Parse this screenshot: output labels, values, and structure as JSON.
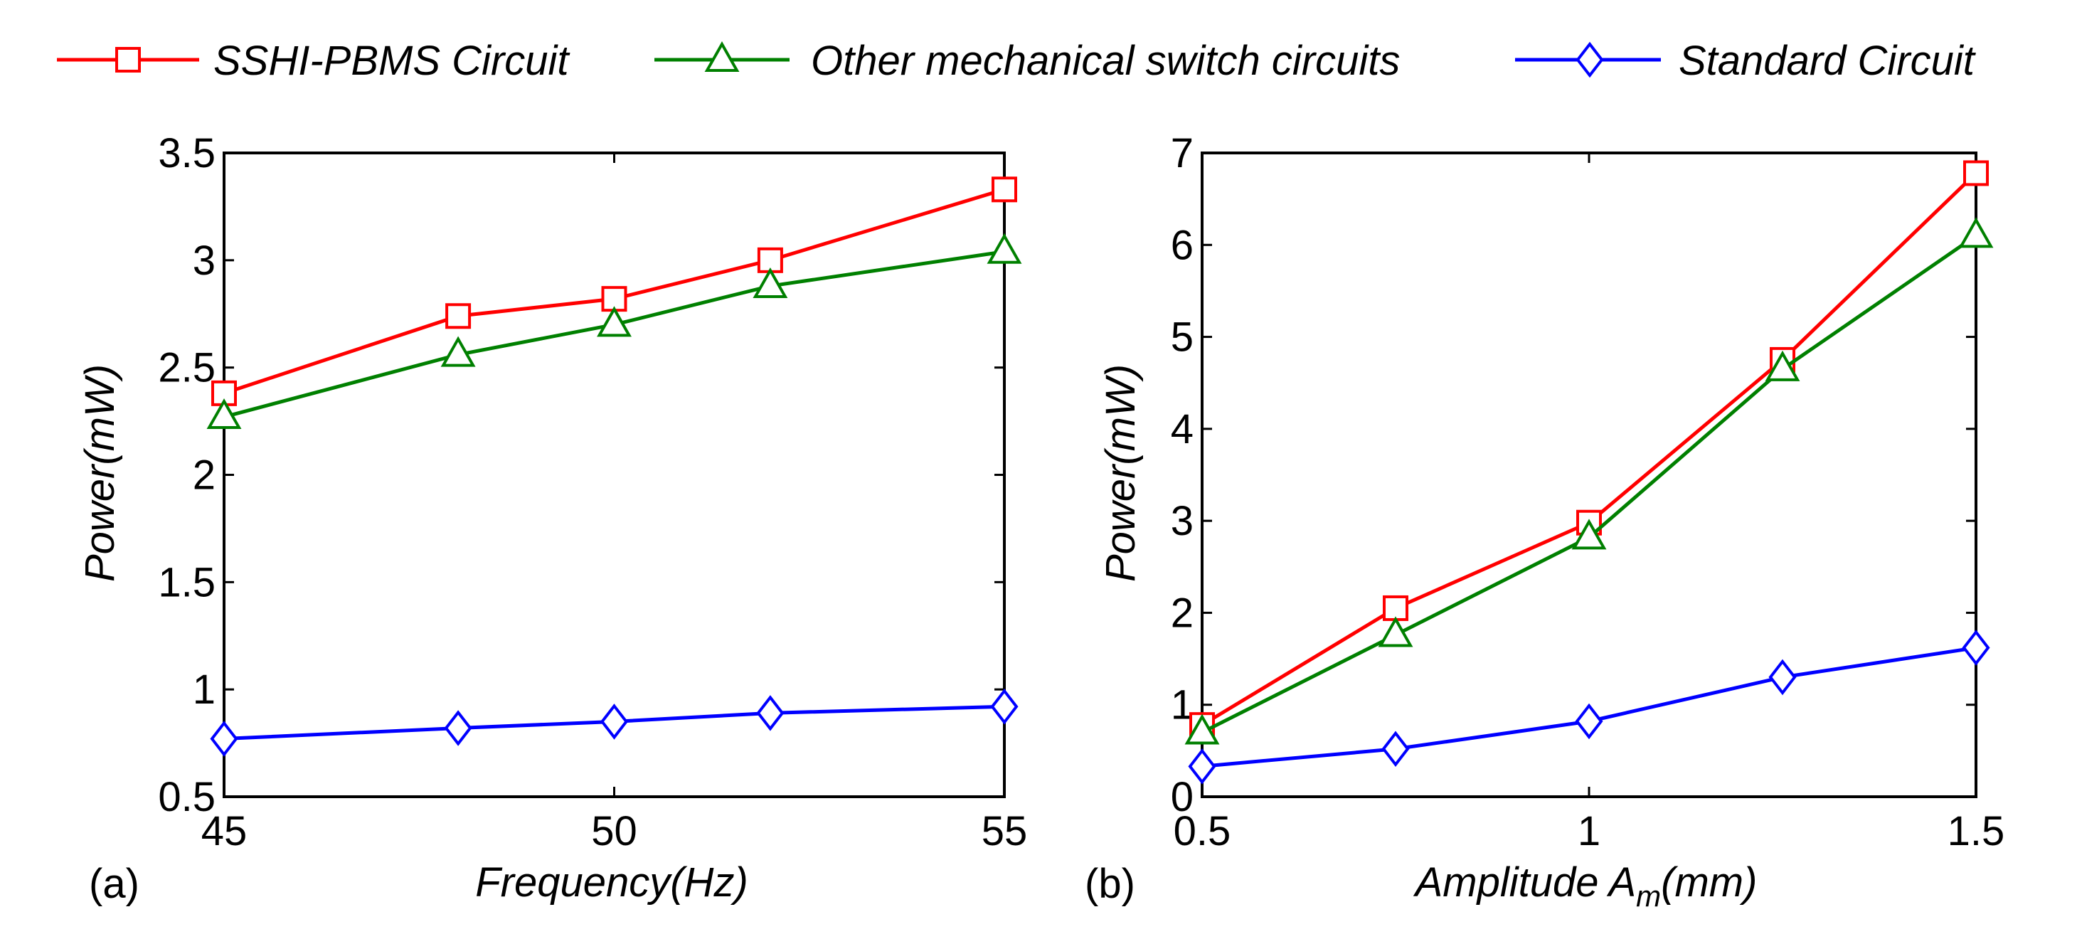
{
  "legend": {
    "entries": [
      {
        "label": "SSHI-PBMS Circuit",
        "color": "#ff0000",
        "marker": "square"
      },
      {
        "label": "Other mechanical switch circuits",
        "color": "#008000",
        "marker": "triangle"
      },
      {
        "label": "Standard Circuit",
        "color": "#0000ff",
        "marker": "diamond"
      }
    ]
  },
  "chart_data": [
    {
      "type": "line",
      "panel_label": "(a)",
      "xlabel": "Frequency(Hz)",
      "ylabel": "Power(mW)",
      "xlim": [
        45,
        55
      ],
      "ylim": [
        0.5,
        3.5
      ],
      "xticks": [
        45,
        50,
        55
      ],
      "xtick_labels": [
        "45",
        "50",
        "55"
      ],
      "yticks": [
        0.5,
        1,
        1.5,
        2,
        2.5,
        3,
        3.5
      ],
      "ytick_labels": [
        "0.5",
        "1",
        "1.5",
        "2",
        "2.5",
        "3",
        "3.5"
      ],
      "x": [
        45,
        48,
        50,
        52,
        55
      ],
      "series": [
        {
          "name": "SSHI-PBMS Circuit",
          "color": "#ff0000",
          "marker": "square",
          "values": [
            2.38,
            2.74,
            2.82,
            3.0,
            3.33
          ]
        },
        {
          "name": "Other mechanical switch circuits",
          "color": "#008000",
          "marker": "triangle",
          "values": [
            2.27,
            2.56,
            2.7,
            2.88,
            3.04
          ]
        },
        {
          "name": "Standard Circuit",
          "color": "#0000ff",
          "marker": "diamond",
          "values": [
            0.77,
            0.82,
            0.85,
            0.89,
            0.92
          ]
        }
      ]
    },
    {
      "type": "line",
      "panel_label": "(b)",
      "xlabel": "Amplitude A",
      "xlabel_sub": "m",
      "xlabel_suffix": "(mm)",
      "ylabel": "Power(mW)",
      "xlim": [
        0.5,
        1.5
      ],
      "ylim": [
        0,
        7
      ],
      "xticks": [
        0.5,
        1,
        1.5
      ],
      "xtick_labels": [
        "0.5",
        "1",
        "1.5"
      ],
      "yticks": [
        0,
        1,
        2,
        3,
        4,
        5,
        6,
        7
      ],
      "ytick_labels": [
        "0",
        "1",
        "2",
        "3",
        "4",
        "5",
        "6",
        "7"
      ],
      "x": [
        0.5,
        0.75,
        1.0,
        1.25,
        1.5
      ],
      "series": [
        {
          "name": "SSHI-PBMS Circuit",
          "color": "#ff0000",
          "marker": "square",
          "values": [
            0.78,
            2.05,
            2.98,
            4.75,
            6.78
          ]
        },
        {
          "name": "Other mechanical switch circuits",
          "color": "#008000",
          "marker": "triangle",
          "values": [
            0.7,
            1.76,
            2.82,
            4.65,
            6.1
          ]
        },
        {
          "name": "Standard Circuit",
          "color": "#0000ff",
          "marker": "diamond",
          "values": [
            0.33,
            0.52,
            0.82,
            1.3,
            1.62
          ]
        }
      ]
    }
  ]
}
